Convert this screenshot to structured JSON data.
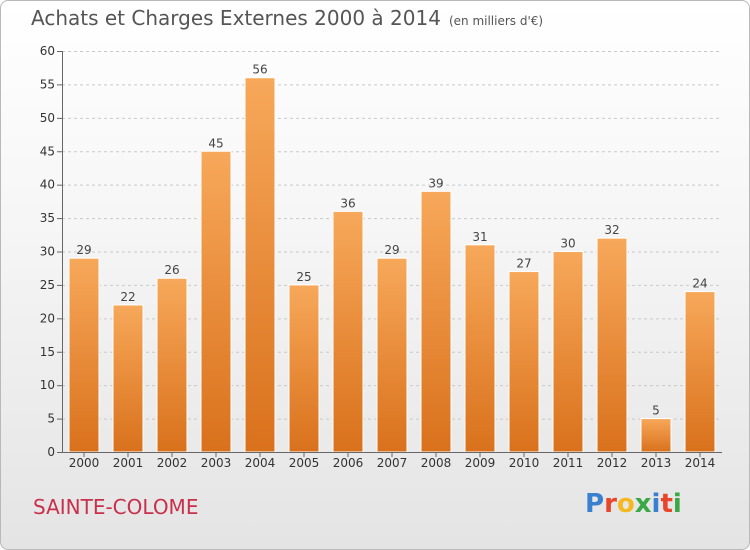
{
  "header": {
    "title": "Achats et Charges Externes 2000 à 2014",
    "subtitle": "(en milliers d'€)"
  },
  "commune": "SAINTE-COLOME",
  "logo": {
    "text": "Proxiti",
    "letters": [
      "P",
      "r",
      "o",
      "x",
      "i",
      "t",
      "i"
    ],
    "colors": [
      "#3a7fd0",
      "#e8462a",
      "#f5b820",
      "#39a845",
      "#3a7fd0",
      "#e8462a",
      "#39a845"
    ]
  },
  "colors": {
    "bar_top": "#f7a85a",
    "bar_bottom": "#d9711c",
    "commune": "#c8304b"
  },
  "chart_data": {
    "type": "bar",
    "title": "Achats et Charges Externes 2000 à 2014",
    "subtitle": "(en milliers d'€)",
    "categories": [
      "2000",
      "2001",
      "2002",
      "2003",
      "2004",
      "2005",
      "2006",
      "2007",
      "2008",
      "2009",
      "2010",
      "2011",
      "2012",
      "2013",
      "2014"
    ],
    "values": [
      29,
      22,
      26,
      45,
      56,
      25,
      36,
      29,
      39,
      31,
      27,
      30,
      32,
      5,
      24
    ],
    "ylim": [
      0,
      60
    ],
    "yticks": [
      0,
      5,
      10,
      15,
      20,
      25,
      30,
      35,
      40,
      45,
      50,
      55,
      60
    ],
    "grid": true,
    "data_labels": true
  }
}
